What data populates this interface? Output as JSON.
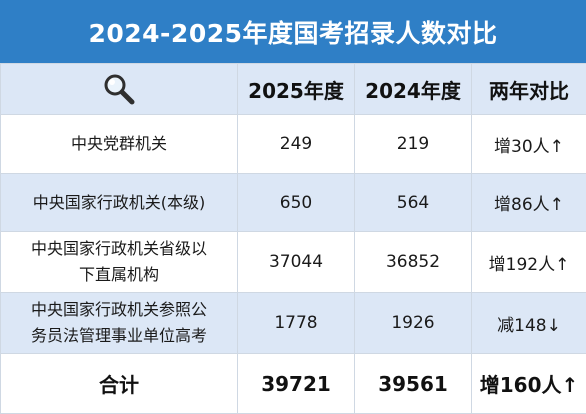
{
  "title": "2024-2025年度国考招录人数对比",
  "header": {
    "icon": "magnifier-icon",
    "col_2025": "2025年度",
    "col_2024": "2024年度",
    "col_compare": "两年对比"
  },
  "rows": [
    {
      "name": "中央党群机关",
      "y2025": "249",
      "y2024": "219",
      "compare": "增30人↑"
    },
    {
      "name": "中央国家行政机关(本级)",
      "y2025": "650",
      "y2024": "564",
      "compare": "增86人↑"
    },
    {
      "name_line1": "中央国家行政机关省级以",
      "name_line2": "下直属机构",
      "y2025": "37044",
      "y2024": "36852",
      "compare": "增192人↑"
    },
    {
      "name_line1": "中央国家行政机关参照公",
      "name_line2": "务员法管理事业单位高考",
      "y2025": "1778",
      "y2024": "1926",
      "compare": "减148↓"
    }
  ],
  "total": {
    "label": "合计",
    "y2025": "39721",
    "y2024": "39561",
    "compare": "增160人↑"
  },
  "colors": {
    "title_bg": "#2f7fc6",
    "stripe": "#dce7f6",
    "border": "#cfd8e3"
  }
}
